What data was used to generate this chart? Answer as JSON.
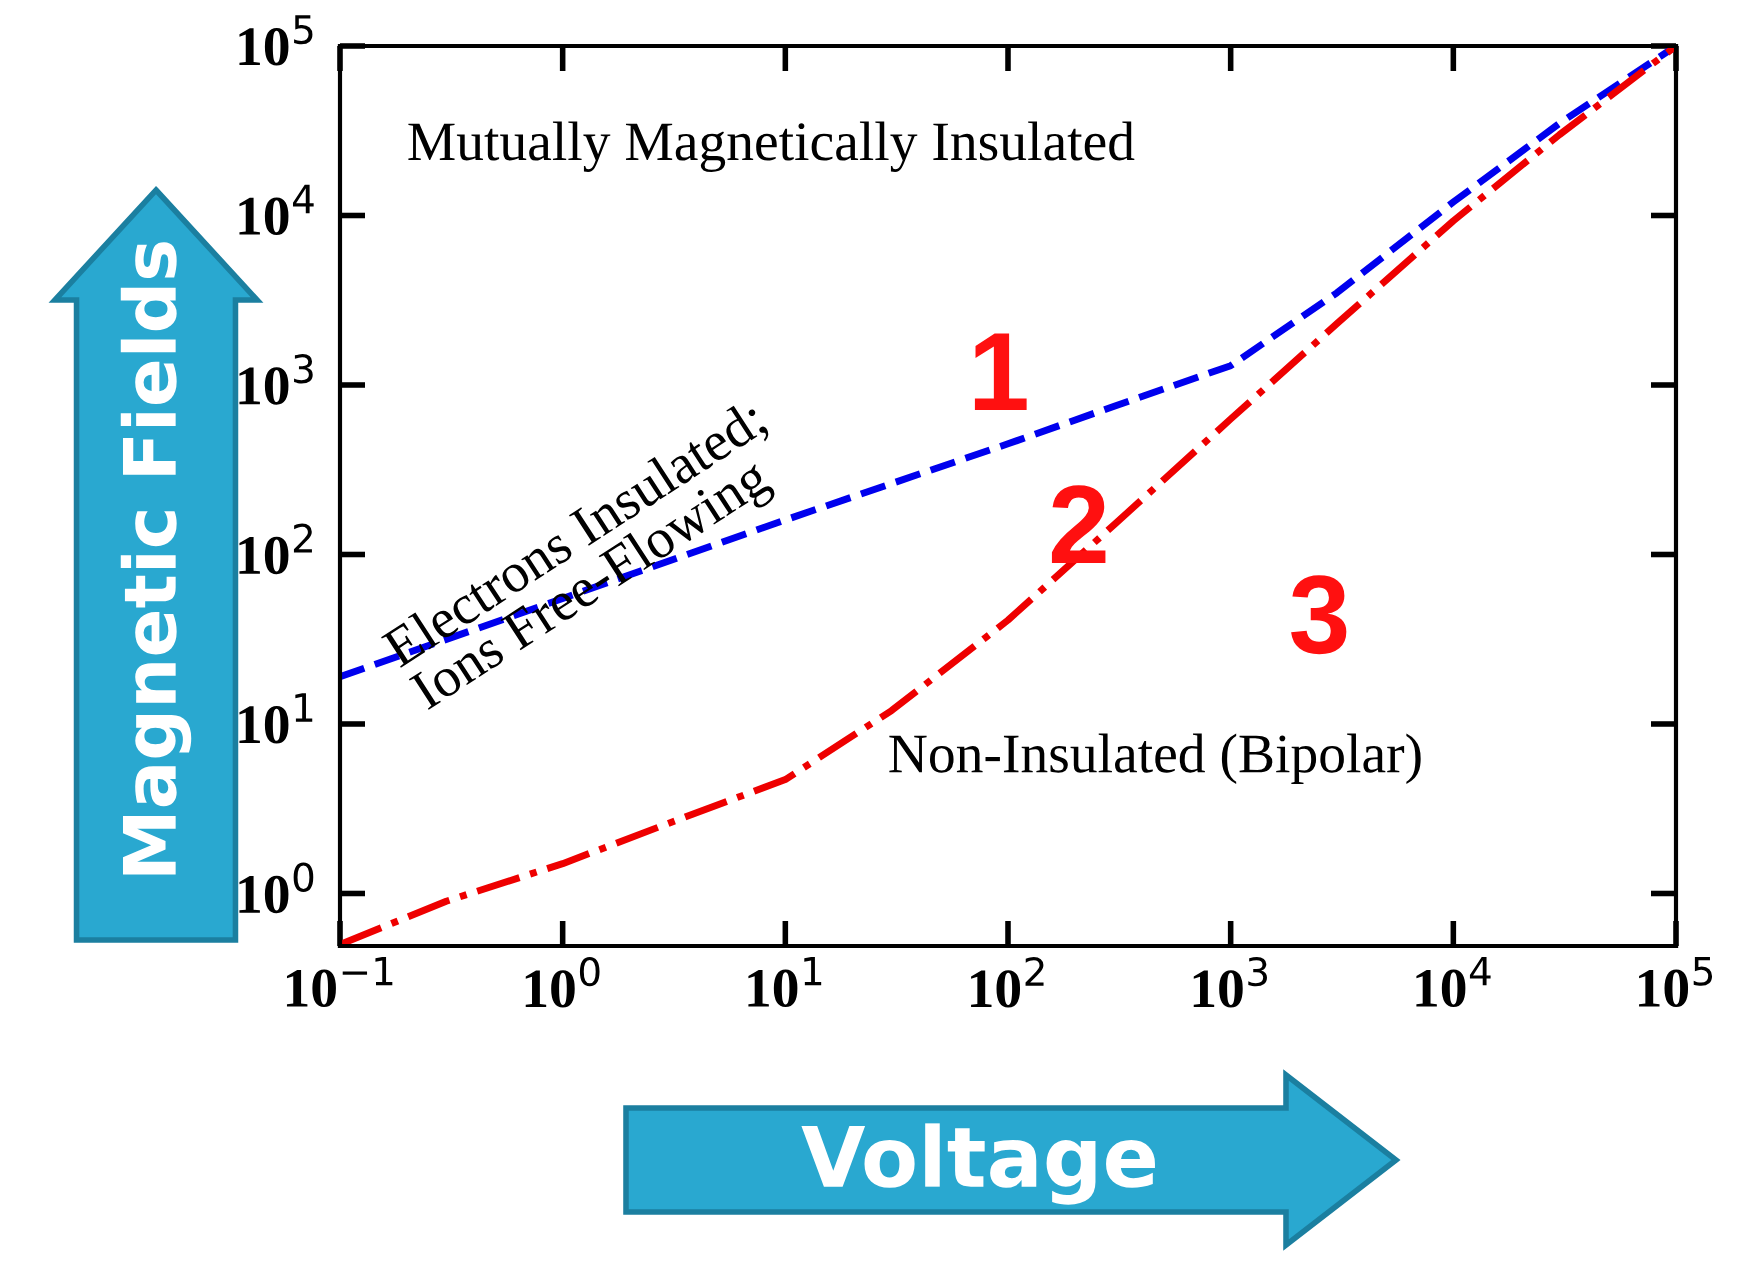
{
  "chart_data": {
    "type": "line",
    "xlabel": "Voltage",
    "ylabel": "Magnetic Fields",
    "log": "xy",
    "marker": "none",
    "xlim": [
      0.1,
      100000
    ],
    "ylim": [
      0.49,
      100000
    ],
    "xticks": [
      {
        "value": 0.1,
        "label": "10$^{−1}$"
      },
      {
        "value": 1,
        "label": "10$^{0}$"
      },
      {
        "value": 10,
        "label": "10$^{1}$"
      },
      {
        "value": 100,
        "label": "10$^{2}$"
      },
      {
        "value": 1000,
        "label": "10$^{3}$"
      },
      {
        "value": 10000,
        "label": "10$^{4}$"
      },
      {
        "value": 100000,
        "label": "10$^{5}$"
      }
    ],
    "yticks": [
      {
        "value": 1,
        "label": "10$^{0}$"
      },
      {
        "value": 10,
        "label": "10$^{1}$"
      },
      {
        "value": 100,
        "label": "10$^{2}$"
      },
      {
        "value": 1000,
        "label": "10$^{3}$"
      },
      {
        "value": 10000,
        "label": "10$^{4}$"
      },
      {
        "value": 100000,
        "label": "10$^{5}$"
      }
    ],
    "series": [
      {
        "color": "#0000ee",
        "line_style": "dashed",
        "x": [
          0.1,
          1,
          10,
          100,
          300,
          1000,
          3000,
          10000,
          30000,
          100000
        ],
        "values": [
          19,
          55,
          160,
          450,
          750,
          1300,
          3500,
          12000,
          35000,
          100000
        ]
      },
      {
        "color": "#ee0000",
        "line_style": "dashdot",
        "x": [
          0.1,
          0.3,
          1,
          3,
          10,
          30,
          100,
          300,
          1000,
          3000,
          10000,
          30000,
          100000
        ],
        "values": [
          0.5,
          0.9,
          1.5,
          2.6,
          4.7,
          12,
          41,
          150,
          630,
          2300,
          9300,
          30000,
          100000
        ]
      }
    ],
    "annotations": [
      "Mutually Magnetically Insulated",
      "Electrons Insulated;\nIons Free-Flowing",
      "Non-Insulated (Bipolar)",
      "1",
      "2",
      "3"
    ]
  }
}
